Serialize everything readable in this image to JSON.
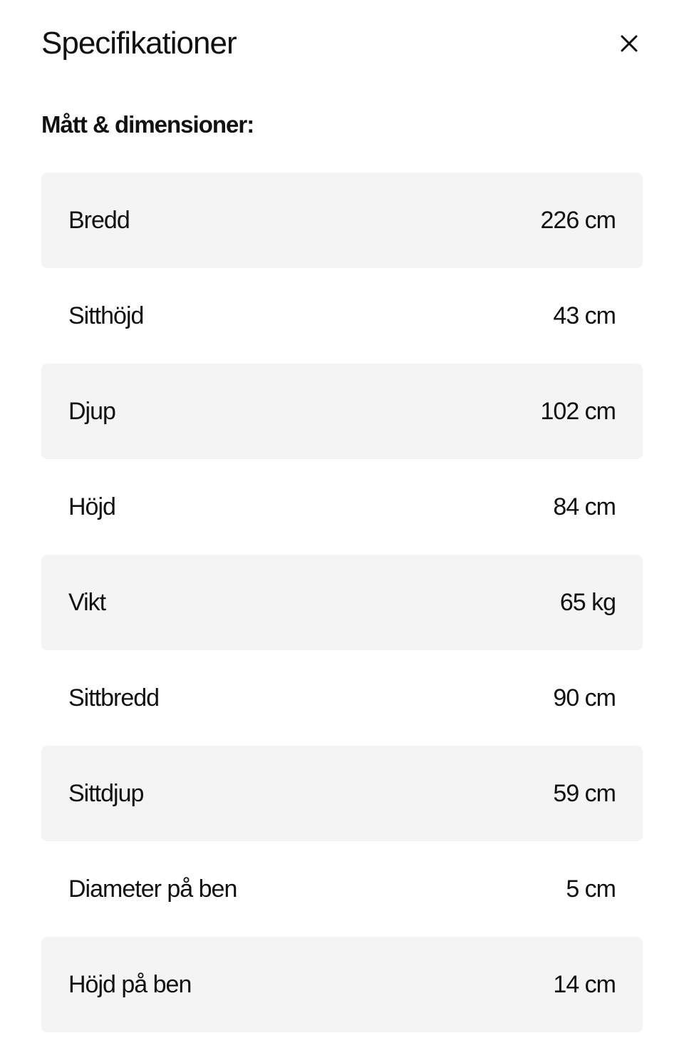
{
  "header": {
    "title": "Specifikationer",
    "close_icon": "close-icon"
  },
  "section": {
    "heading": "Mått & dimensioner:"
  },
  "specs": [
    {
      "label": "Bredd",
      "value": "226 cm"
    },
    {
      "label": "Sitthöjd",
      "value": "43 cm"
    },
    {
      "label": "Djup",
      "value": "102 cm"
    },
    {
      "label": "Höjd",
      "value": "84 cm"
    },
    {
      "label": "Vikt",
      "value": "65 kg"
    },
    {
      "label": "Sittbredd",
      "value": "90 cm"
    },
    {
      "label": "Sittdjup",
      "value": "59 cm"
    },
    {
      "label": "Diameter på ben",
      "value": "5 cm"
    },
    {
      "label": "Höjd på ben",
      "value": "14 cm"
    }
  ],
  "colors": {
    "row_alt_bg": "#f4f4f4",
    "text": "#111111"
  }
}
